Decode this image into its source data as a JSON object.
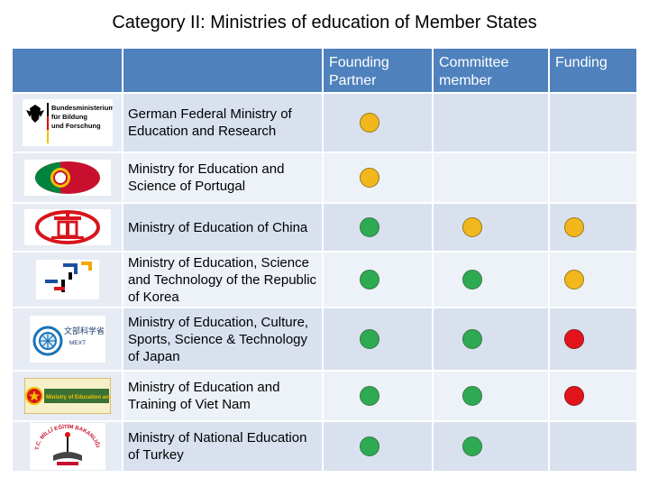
{
  "title": "Category II: Ministries of education of Member States",
  "columns": {
    "founding_partner": "Founding Partner",
    "committee_member": "Committee member",
    "funding": "Funding"
  },
  "colors": {
    "yellow": "#f2b71c",
    "green": "#2eaa52",
    "red": "#e4141c"
  },
  "rows": [
    {
      "name": "German Federal Ministry of Education and Research",
      "logo_icon": "german-ministry-logo",
      "logo_text": [
        "Bundesministerium",
        "für Bildung",
        "und Forschung"
      ],
      "founding_partner": "yellow",
      "committee_member": "",
      "funding": ""
    },
    {
      "name": "Ministry for Education and Science of Portugal",
      "logo_icon": "portugal-flag-logo",
      "founding_partner": "yellow",
      "committee_member": "",
      "funding": ""
    },
    {
      "name": "Ministry of Education of China",
      "logo_icon": "china-ministry-logo",
      "founding_partner": "green",
      "committee_member": "yellow",
      "funding": "yellow"
    },
    {
      "name": "Ministry of Education, Science and Technology of the Republic of Korea",
      "logo_icon": "korea-ministry-logo",
      "founding_partner": "green",
      "committee_member": "green",
      "funding": "yellow"
    },
    {
      "name": "Ministry of Education, Culture, Sports, Science & Technology of Japan",
      "logo_icon": "japan-mext-logo",
      "logo_text": [
        "文部科学省",
        "MEXT"
      ],
      "founding_partner": "green",
      "committee_member": "green",
      "funding": "red"
    },
    {
      "name": "Ministry of Education and Training of Viet Nam",
      "logo_icon": "vietnam-ministry-logo",
      "logo_text": [
        "Ministry of Education and Training"
      ],
      "founding_partner": "green",
      "committee_member": "green",
      "funding": "red"
    },
    {
      "name": "Ministry of National Education of Turkey",
      "logo_icon": "turkey-ministry-logo",
      "logo_text": [
        "T.C. MİLLÎ EĞİTİM BAKANLIĞI"
      ],
      "founding_partner": "green",
      "committee_member": "green",
      "funding": ""
    }
  ]
}
